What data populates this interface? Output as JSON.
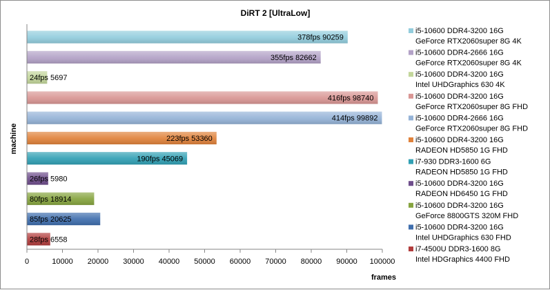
{
  "chart_data": {
    "type": "bar",
    "orientation": "horizontal",
    "title": "DiRT 2 [UltraLow]",
    "xlabel": "frames",
    "ylabel": "machine",
    "xlim": [
      0,
      100000
    ],
    "xticks": [
      "0",
      "10000",
      "20000",
      "30000",
      "40000",
      "50000",
      "60000",
      "70000",
      "80000",
      "90000",
      "100000"
    ],
    "grid": false,
    "legend_position": "right",
    "bars": [
      {
        "legend": [
          "i5-10600  DDR4-3200 16G",
          "GeForce RTX2060super 8G  4K"
        ],
        "value": 90259,
        "fps": "378fps",
        "label": "378fps  90259",
        "color": "#93CDDD"
      },
      {
        "legend": [
          "i5-10600  DDR4-2666 16G",
          "GeForce RTX2060super 8G  4K"
        ],
        "value": 82662,
        "fps": "355fps",
        "label": "355fps  82662",
        "color": "#B3A2C7"
      },
      {
        "legend": [
          "i5-10600 DDR4-3200 16G",
          "Intel UHDGraphics 630  4K"
        ],
        "value": 5697,
        "fps": "24fps",
        "label": "24fps  5697",
        "color": "#C3D69B"
      },
      {
        "legend": [
          "i5-10600  DDR4-3200 16G",
          "GeForce RTX2060super 8G  FHD"
        ],
        "value": 98740,
        "fps": "416fps",
        "label": "416fps  98740",
        "color": "#D99694"
      },
      {
        "legend": [
          "i5-10600  DDR4-2666 16G",
          "GeForce RTX2060super 8G  FHD"
        ],
        "value": 99892,
        "fps": "414fps",
        "label": "414fps  99892",
        "color": "#95B3D7"
      },
      {
        "legend": [
          "i5-10600  DDR4-3200 16G",
          "RADEON HD5850 1G FHD"
        ],
        "value": 53360,
        "fps": "223fps",
        "label": "223fps  53360",
        "color": "#E0823B"
      },
      {
        "legend": [
          "i7-930  DDR3-1600 6G",
          "RADEON HD5850 1G  FHD"
        ],
        "value": 45069,
        "fps": "190fps",
        "label": "190fps  45069",
        "color": "#31A0B4"
      },
      {
        "legend": [
          "i5-10600  DDR4-3200 16G",
          "RADEON HD6450 1G  FHD"
        ],
        "value": 5980,
        "fps": "26fps",
        "label": "26fps  5980",
        "color": "#6F4E8C"
      },
      {
        "legend": [
          "i5-10600  DDR4-3200 16G",
          "GeForce 8800GTS 320M  FHD"
        ],
        "value": 18914,
        "fps": "80fps",
        "label": "80fps  18914",
        "color": "#86A43F"
      },
      {
        "legend": [
          "i5-10600 DDR4-3200 16G",
          "Intel UHDGraphics  630  FHD"
        ],
        "value": 20625,
        "fps": "85fps",
        "label": "85fps  20625",
        "color": "#3F6EAD"
      },
      {
        "legend": [
          "i7-4500U DDR3-1600 8G",
          "Intel HDGraphics 4400  FHD"
        ],
        "value": 6558,
        "fps": "28fps",
        "label": "28fps  6558",
        "color": "#B23D3D"
      }
    ]
  }
}
